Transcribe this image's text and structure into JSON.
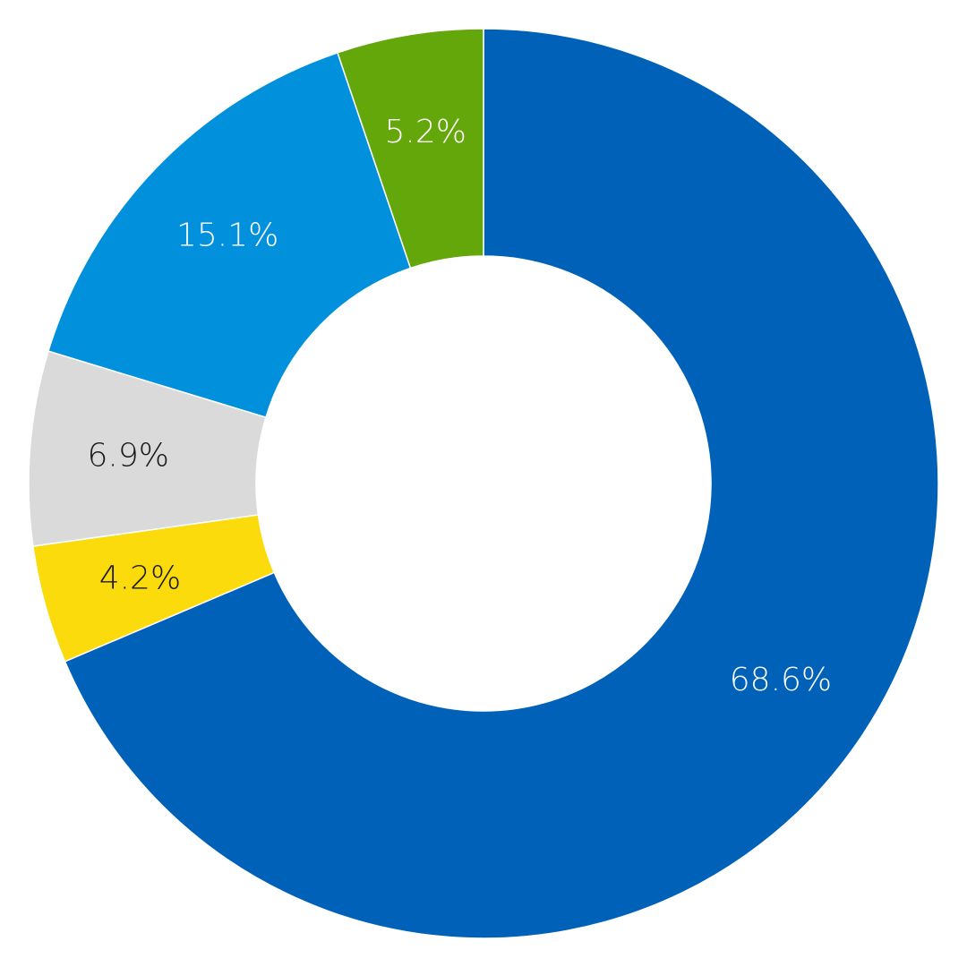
{
  "chart_data": {
    "type": "pie",
    "variant": "donut",
    "title": "",
    "start": "top",
    "direction": "clockwise",
    "slices": [
      {
        "value": 68.6,
        "label": "68.6%",
        "color": "#0061B8",
        "label_color": "#ffffff"
      },
      {
        "value": 4.2,
        "label": "4.2%",
        "color": "#FBDB0C",
        "label_color": "#1a1a1a"
      },
      {
        "value": 6.9,
        "label": "6.9%",
        "color": "#DADADA",
        "label_color": "#1a1a1a"
      },
      {
        "value": 15.1,
        "label": "15.1%",
        "color": "#0090DC",
        "label_color": "#ffffff"
      },
      {
        "value": 5.2,
        "label": "5.2%",
        "color": "#64A70B",
        "label_color": "#ffffff"
      }
    ]
  }
}
